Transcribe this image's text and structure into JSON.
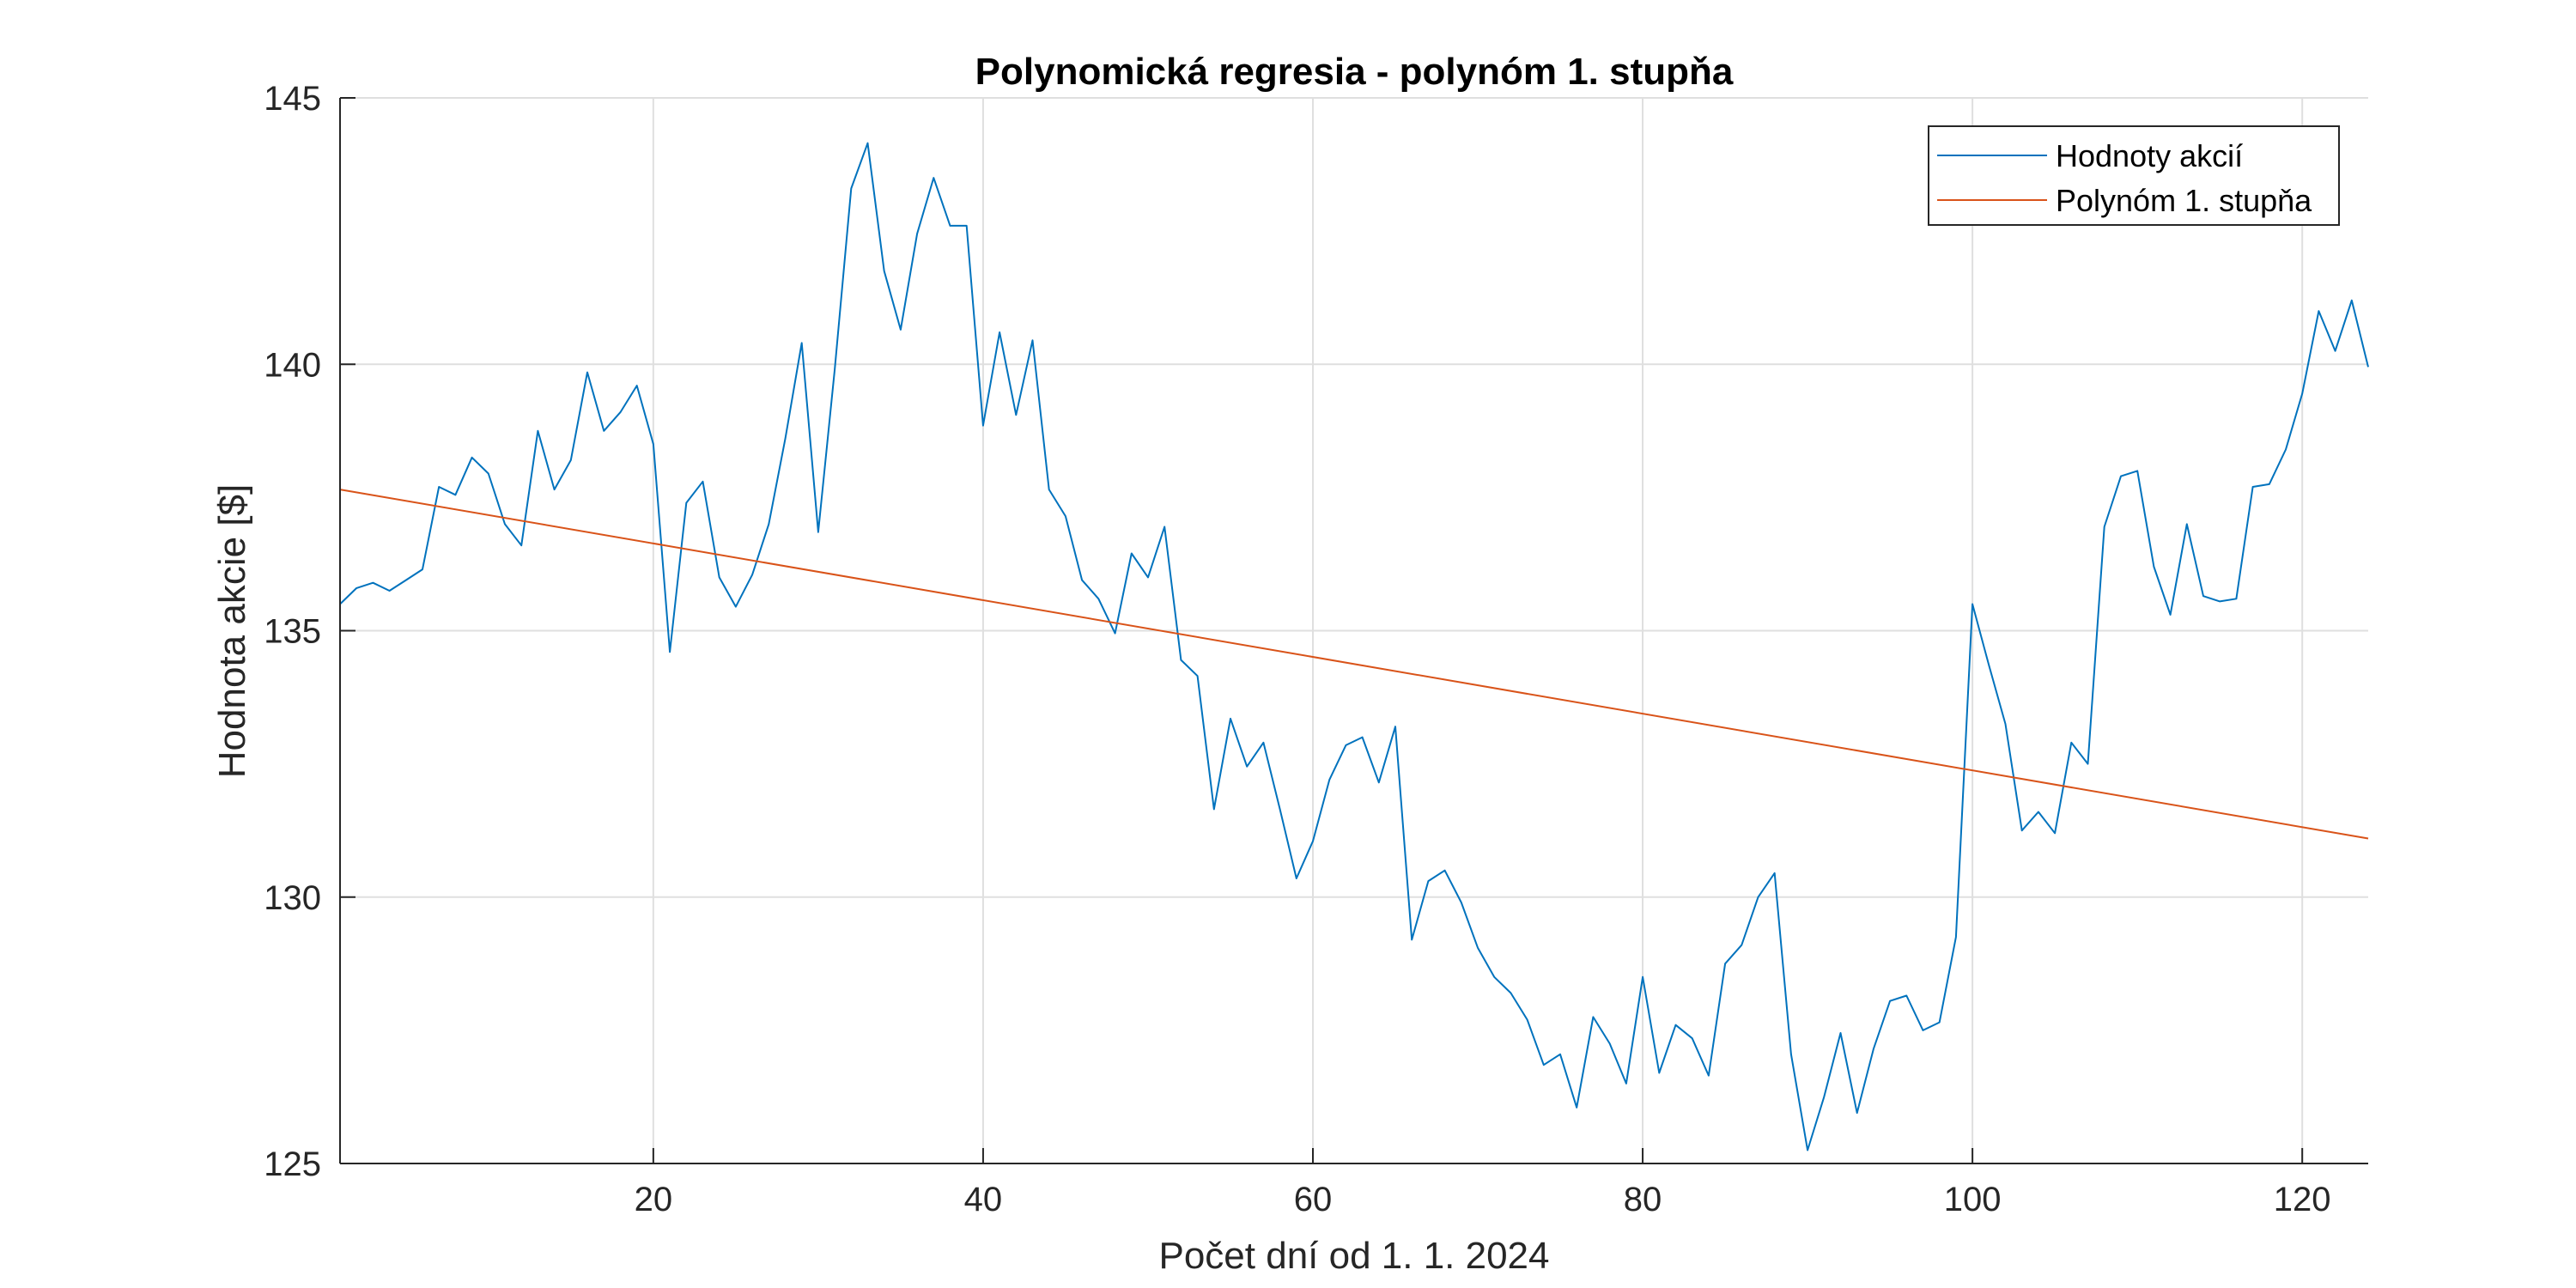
{
  "chart_data": {
    "type": "line",
    "title": "Polynomická regresia - polynóm 1. stupňa",
    "xlabel": "Počet dní od 1. 1. 2024",
    "ylabel": "Hodnota akcie [$]",
    "xlim": [
      1,
      124
    ],
    "ylim": [
      125,
      145
    ],
    "xticks": [
      20,
      40,
      60,
      80,
      100,
      120
    ],
    "yticks": [
      125,
      130,
      135,
      140,
      145
    ],
    "grid": true,
    "legend_position": "top-right",
    "series": [
      {
        "name": "Hodnoty akcií",
        "color": "#0072BD",
        "x": [
          1,
          2,
          3,
          4,
          5,
          6,
          7,
          8,
          9,
          10,
          11,
          12,
          13,
          14,
          15,
          16,
          17,
          18,
          19,
          20,
          21,
          22,
          23,
          24,
          25,
          26,
          27,
          28,
          29,
          30,
          31,
          32,
          33,
          34,
          35,
          36,
          37,
          38,
          39,
          40,
          41,
          42,
          43,
          44,
          45,
          46,
          47,
          48,
          49,
          50,
          51,
          52,
          53,
          54,
          55,
          56,
          57,
          58,
          59,
          60,
          61,
          62,
          63,
          64,
          65,
          66,
          67,
          68,
          69,
          70,
          71,
          72,
          73,
          74,
          75,
          76,
          77,
          78,
          79,
          80,
          81,
          82,
          83,
          84,
          85,
          86,
          87,
          88,
          89,
          90,
          91,
          92,
          93,
          94,
          95,
          96,
          97,
          98,
          99,
          100,
          101,
          102,
          103,
          104,
          105,
          106,
          107,
          108,
          109,
          110,
          111,
          112,
          113,
          114,
          115,
          116,
          117,
          118,
          119,
          120,
          121,
          122,
          123,
          124
        ],
        "y": [
          135.5,
          135.8,
          135.9,
          135.75,
          135.95,
          136.15,
          137.7,
          137.55,
          138.25,
          137.95,
          137.0,
          136.6,
          138.75,
          137.65,
          138.2,
          139.85,
          138.75,
          139.1,
          139.6,
          138.5,
          134.6,
          137.4,
          137.8,
          136.0,
          135.45,
          136.05,
          137.0,
          138.6,
          140.4,
          136.85,
          139.9,
          143.3,
          144.15,
          141.75,
          140.65,
          142.45,
          143.5,
          142.6,
          142.6,
          138.85,
          140.6,
          139.05,
          140.45,
          137.65,
          137.15,
          135.95,
          135.6,
          134.95,
          136.45,
          136.0,
          136.95,
          134.45,
          134.15,
          131.65,
          133.35,
          132.45,
          132.9,
          131.65,
          130.35,
          131.05,
          132.2,
          132.85,
          133.0,
          132.15,
          133.2,
          129.2,
          130.3,
          130.5,
          129.9,
          129.05,
          128.5,
          128.2,
          127.7,
          126.85,
          127.05,
          126.05,
          127.75,
          127.25,
          126.5,
          128.5,
          126.7,
          127.6,
          127.35,
          126.65,
          128.75,
          129.1,
          130.0,
          130.45,
          127.05,
          125.25,
          126.25,
          127.45,
          125.95,
          127.15,
          128.05,
          128.15,
          127.5,
          127.65,
          129.25,
          135.5,
          134.35,
          133.25,
          131.25,
          131.6,
          131.2,
          132.9,
          132.5,
          136.95,
          137.9,
          138.0,
          136.2,
          135.3,
          137.0,
          135.65,
          135.55,
          135.6,
          137.7,
          137.75,
          138.4,
          139.45,
          141.0,
          140.25,
          141.2,
          139.95
        ]
      },
      {
        "name": "Polynóm 1. stupňa",
        "color": "#D95319",
        "x": [
          1,
          124
        ],
        "y": [
          137.65,
          131.1
        ]
      }
    ]
  }
}
